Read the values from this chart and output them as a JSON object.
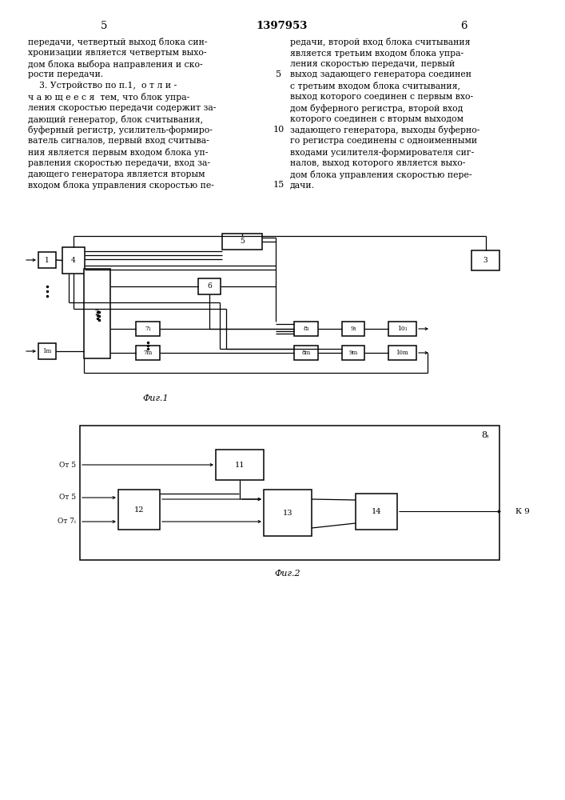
{
  "title": "1397953",
  "page_left": "5",
  "page_right": "6",
  "background_color": "#ffffff",
  "line_color": "#000000",
  "text_left_lines": [
    "передачи, четвертый выход блока син-",
    "хронизации является четвертым выхо-",
    "дом блока выбора направления и ско-",
    "рости передачи.",
    "    3. Устройство по п.1,  о т л и -",
    "ч а ю щ е е с я  тем, что блок упра-",
    "ления скоростью передачи содержит за-",
    "дающий генератор, блок считывания,",
    "буферный регистр, усилитель-формиро-",
    "ватель сигналов, первый вход считыва-",
    "ния является первым входом блока уп-",
    "равления скоростью передачи, вход за-",
    "дающего генератора является вторым",
    "входом блока управления скоростью пе-"
  ],
  "text_right_lines": [
    "редачи, второй вход блока считывания",
    "является третьим входом блока упра-",
    "ления скоростью передачи, первый",
    "выход задающего генератора соединен",
    "с третьим входом блока считывания,",
    "выход которого соединен с первым вхо-",
    "дом буферного регистра, второй вход",
    "которого соединен с вторым выходом",
    "задающего генератора, выходы буферно-",
    "го регистра соединены с одноименными",
    "входами усилителя-формирователя сиг-",
    "налов, выход которого является выхо-",
    "дом блока управления скоростью пере-",
    "дачи."
  ],
  "fig1_caption": "Фиг.1",
  "fig2_caption": "Фиг.2"
}
